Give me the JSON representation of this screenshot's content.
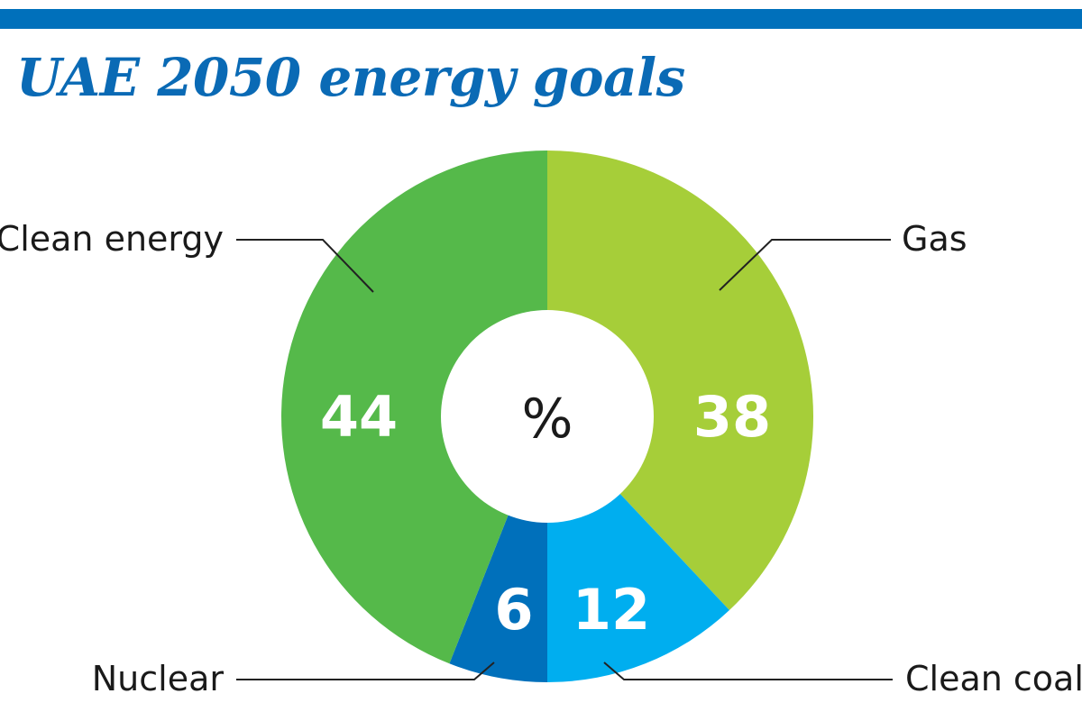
{
  "title": "UAE 2050 energy goals",
  "colors": {
    "bar": "#0070bb",
    "title": "#0a6ab5",
    "text": "#1a1a1a",
    "callout_line": "#222222"
  },
  "chart_data": {
    "type": "pie",
    "variant": "donut",
    "title": "UAE 2050 energy goals",
    "center_label": "%",
    "unit": "%",
    "slices": [
      {
        "label": "Gas",
        "value": 38,
        "value_label": "38",
        "color": "#a6ce39"
      },
      {
        "label": "Clean coal",
        "value": 12,
        "value_label": "12",
        "color": "#00aeef"
      },
      {
        "label": "Nuclear",
        "value": 6,
        "value_label": "6",
        "color": "#0070bb"
      },
      {
        "label": "Clean energy",
        "value": 44,
        "value_label": "44",
        "color": "#55b94a"
      }
    ]
  }
}
